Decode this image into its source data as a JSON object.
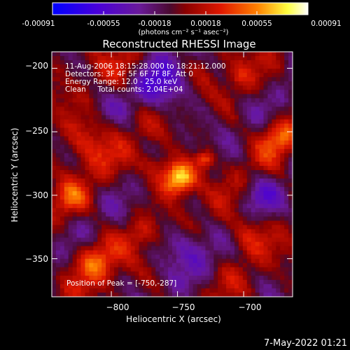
{
  "colorbar": {
    "ticks": [
      "-0.00091",
      "-0.00055",
      "-0.00018",
      "0.00018",
      "0.00055",
      "0.00091"
    ],
    "units": "(photons cm⁻² s⁻¹ asec⁻²)"
  },
  "colors": {
    "background": "#000000",
    "text": "#ffffff",
    "colormap": [
      "#0000ff",
      "#5e00c8",
      "#6a1a8c",
      "#8a0000",
      "#e01800",
      "#ff8000",
      "#ffff40",
      "#ffffff"
    ]
  },
  "annotations": {
    "line1": "11-Aug-2006 18:15:28.000 to 18:21:12.000",
    "line2": "Detectors: 3F 4F 5F 6F 7F 8F, Att 0",
    "line3": "Energy Range: 12.0 - 25.0 keV",
    "line4": "Clean     Total counts: 2.04E+04",
    "peak": "Position of Peak = [-750,-287]"
  },
  "footer": {
    "date": "7-May-2022 01:21"
  },
  "chart_data": {
    "type": "heatmap",
    "title": "Reconstructed RHESSI Image",
    "xlabel": "Heliocentric X (arcsec)",
    "ylabel": "Heliocentric Y (arcsec)",
    "xlim": [
      -845,
      -663
    ],
    "ylim": [
      -380,
      -187
    ],
    "xticks": [
      -800,
      -750,
      -700
    ],
    "xtick_labels": [
      "−800",
      "−750",
      "−700"
    ],
    "yticks": [
      -200,
      -250,
      -300,
      -350
    ],
    "ytick_labels": [
      "−200",
      "−250",
      "−300",
      "−350"
    ],
    "colorbar_range": [
      -0.00091,
      0.00091
    ],
    "peak_position": [
      -750,
      -287
    ],
    "sources": [
      {
        "x": -749,
        "y": -287,
        "amplitude": 0.00091,
        "sigma": 9
      },
      {
        "x": -729,
        "y": -272,
        "amplitude": 0.00048,
        "sigma": 5
      },
      {
        "x": -767,
        "y": -276,
        "amplitude": 0.0003,
        "sigma": 8
      },
      {
        "x": -820,
        "y": -258,
        "amplitude": 0.0004,
        "sigma": 14
      },
      {
        "x": -832,
        "y": -302,
        "amplitude": 0.0003,
        "sigma": 9
      },
      {
        "x": -812,
        "y": -352,
        "amplitude": 0.00045,
        "sigma": 12
      },
      {
        "x": -777,
        "y": -330,
        "amplitude": 0.00026,
        "sigma": 9
      },
      {
        "x": -700,
        "y": -330,
        "amplitude": 0.00034,
        "sigma": 12
      },
      {
        "x": -673,
        "y": -255,
        "amplitude": 0.0004,
        "sigma": 10
      },
      {
        "x": -702,
        "y": -206,
        "amplitude": 0.00024,
        "sigma": 9
      },
      {
        "x": -790,
        "y": -200,
        "amplitude": 0.0002,
        "sigma": 9
      },
      {
        "x": -760,
        "y": -215,
        "amplitude": -0.00042,
        "sigma": 14
      },
      {
        "x": -745,
        "y": -340,
        "amplitude": -0.0003,
        "sigma": 14
      },
      {
        "x": -688,
        "y": -300,
        "amplitude": -0.00024,
        "sigma": 10
      }
    ]
  }
}
